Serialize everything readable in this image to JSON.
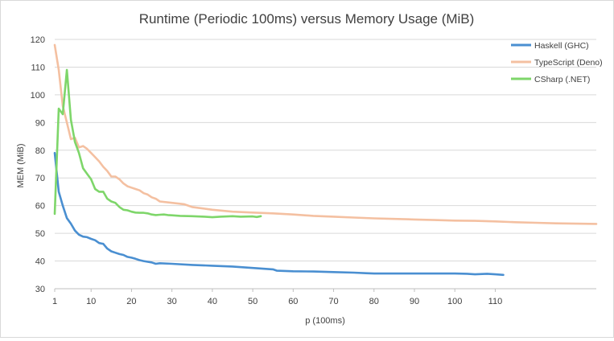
{
  "chart_data": {
    "type": "line",
    "title": "Runtime (Periodic 100ms) versus Memory Usage (MiB)",
    "xlabel": "p (100ms)",
    "ylabel": "MEM (MiB)",
    "xlim": [
      1,
      135
    ],
    "ylim": [
      30,
      120
    ],
    "xticks": [
      1,
      10,
      20,
      30,
      40,
      50,
      60,
      70,
      80,
      90,
      100,
      110
    ],
    "yticks": [
      30,
      40,
      50,
      60,
      70,
      80,
      90,
      100,
      110,
      120
    ],
    "grid": "horizontal",
    "legend": "top-right",
    "series": [
      {
        "name": "Haskell (GHC)",
        "color": "#4a8fd1",
        "points": [
          [
            1,
            79
          ],
          [
            2,
            65
          ],
          [
            3,
            60
          ],
          [
            4,
            55.5
          ],
          [
            5,
            53.5
          ],
          [
            6,
            51
          ],
          [
            7,
            49.5
          ],
          [
            8,
            48.8
          ],
          [
            9,
            48.6
          ],
          [
            10,
            48
          ],
          [
            11,
            47.5
          ],
          [
            12,
            46.5
          ],
          [
            13,
            46.2
          ],
          [
            14,
            44.5
          ],
          [
            15,
            43.5
          ],
          [
            16,
            43
          ],
          [
            17,
            42.5
          ],
          [
            18,
            42.2
          ],
          [
            19,
            41.5
          ],
          [
            20,
            41.2
          ],
          [
            21,
            40.8
          ],
          [
            22,
            40.3
          ],
          [
            23,
            40
          ],
          [
            25,
            39.5
          ],
          [
            26,
            39
          ],
          [
            27,
            39.2
          ],
          [
            30,
            39
          ],
          [
            35,
            38.6
          ],
          [
            40,
            38.3
          ],
          [
            45,
            38
          ],
          [
            50,
            37.5
          ],
          [
            55,
            37
          ],
          [
            56,
            36.5
          ],
          [
            60,
            36.3
          ],
          [
            65,
            36.2
          ],
          [
            70,
            36
          ],
          [
            75,
            35.8
          ],
          [
            78,
            35.6
          ],
          [
            80,
            35.5
          ],
          [
            85,
            35.5
          ],
          [
            90,
            35.5
          ],
          [
            95,
            35.5
          ],
          [
            100,
            35.5
          ],
          [
            103,
            35.4
          ],
          [
            105,
            35.2
          ],
          [
            108,
            35.4
          ],
          [
            110,
            35.2
          ],
          [
            112,
            35
          ]
        ]
      },
      {
        "name": "TypeScript (Deno)",
        "color": "#f4c0a1",
        "points": [
          [
            1,
            118
          ],
          [
            2,
            109
          ],
          [
            3,
            96
          ],
          [
            4,
            90
          ],
          [
            5,
            84
          ],
          [
            6,
            84.5
          ],
          [
            7,
            81
          ],
          [
            8,
            81.5
          ],
          [
            9,
            80.5
          ],
          [
            10,
            79
          ],
          [
            11,
            77.5
          ],
          [
            12,
            76
          ],
          [
            13,
            74
          ],
          [
            14,
            72.5
          ],
          [
            15,
            70.5
          ],
          [
            16,
            70.5
          ],
          [
            17,
            69.5
          ],
          [
            18,
            68
          ],
          [
            19,
            67
          ],
          [
            20,
            66.5
          ],
          [
            21,
            66
          ],
          [
            22,
            65.5
          ],
          [
            23,
            64.5
          ],
          [
            24,
            64
          ],
          [
            25,
            63
          ],
          [
            26,
            62.5
          ],
          [
            27,
            61.5
          ],
          [
            30,
            61
          ],
          [
            33,
            60.5
          ],
          [
            35,
            59.5
          ],
          [
            40,
            58.5
          ],
          [
            45,
            57.8
          ],
          [
            50,
            57.5
          ],
          [
            55,
            57.2
          ],
          [
            60,
            56.8
          ],
          [
            65,
            56.3
          ],
          [
            70,
            56
          ],
          [
            75,
            55.7
          ],
          [
            80,
            55.4
          ],
          [
            85,
            55.2
          ],
          [
            90,
            55
          ],
          [
            95,
            54.8
          ],
          [
            100,
            54.6
          ],
          [
            105,
            54.5
          ],
          [
            110,
            54.3
          ],
          [
            115,
            54
          ],
          [
            120,
            53.8
          ],
          [
            125,
            53.6
          ],
          [
            130,
            53.5
          ],
          [
            135,
            53.4
          ]
        ]
      },
      {
        "name": "CSharp (.NET)",
        "color": "#7ed66a",
        "points": [
          [
            1,
            57
          ],
          [
            2,
            95
          ],
          [
            3,
            93
          ],
          [
            4,
            109
          ],
          [
            5,
            91
          ],
          [
            6,
            83
          ],
          [
            7,
            79
          ],
          [
            8,
            73.5
          ],
          [
            9,
            71.5
          ],
          [
            10,
            69.5
          ],
          [
            11,
            66
          ],
          [
            12,
            65
          ],
          [
            13,
            65
          ],
          [
            14,
            62.5
          ],
          [
            15,
            61.5
          ],
          [
            16,
            61
          ],
          [
            17,
            59.5
          ],
          [
            18,
            58.5
          ],
          [
            19,
            58.3
          ],
          [
            20,
            57.8
          ],
          [
            21,
            57.5
          ],
          [
            22,
            57.4
          ],
          [
            23,
            57.4
          ],
          [
            24,
            57.2
          ],
          [
            25,
            56.8
          ],
          [
            26,
            56.6
          ],
          [
            27,
            56.7
          ],
          [
            28,
            56.8
          ],
          [
            29,
            56.6
          ],
          [
            30,
            56.5
          ],
          [
            32,
            56.3
          ],
          [
            35,
            56.2
          ],
          [
            38,
            56
          ],
          [
            40,
            55.8
          ],
          [
            42,
            56
          ],
          [
            45,
            56.2
          ],
          [
            47,
            56
          ],
          [
            50,
            56.1
          ],
          [
            51,
            55.9
          ],
          [
            52,
            56.2
          ]
        ]
      }
    ]
  }
}
